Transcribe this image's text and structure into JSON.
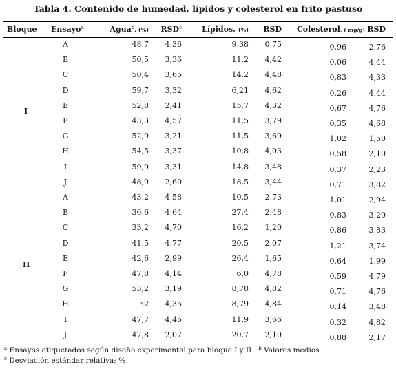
{
  "title": {
    "prefix": "Tabla 4.",
    "text": "Contenido de humedad, lípidos y colesterol en frito pastuso"
  },
  "headers": {
    "bloque": "Bloque",
    "ensayo": "Ensayo",
    "ensayo_sup": "a",
    "agua": "Agua",
    "agua_sup": "b",
    "agua_unit": ", (%)",
    "rsd1": "RSD",
    "rsd1_sup": "c",
    "lipidos": "Lípidos,",
    "lipidos_unit": "(%)",
    "rsd2": "RSD",
    "colesterol": "Colesterol",
    "colesterol_unit": ", ( mg/g)",
    "rsd3": "RSD"
  },
  "blocks": [
    {
      "label": "I"
    },
    {
      "label": "II"
    }
  ],
  "rows": [
    {
      "ensayo": "A",
      "agua": "48,7",
      "rsd1": "4,36",
      "lipidos": "9,38",
      "rsd2": "0,75",
      "colesterol": "0,96",
      "rsd3": "2,76"
    },
    {
      "ensayo": "B",
      "agua": "50,5",
      "rsd1": "3,36",
      "lipidos": "11,2",
      "rsd2": "4,42",
      "colesterol": "0,06",
      "rsd3": "4,44"
    },
    {
      "ensayo": "C",
      "agua": "50,4",
      "rsd1": "3,65",
      "lipidos": "14,2",
      "rsd2": "4,48",
      "colesterol": "0,83",
      "rsd3": "4,33"
    },
    {
      "ensayo": "D",
      "agua": "59,7",
      "rsd1": "3,32",
      "lipidos": "6,21",
      "rsd2": "4,62",
      "colesterol": "0,26",
      "rsd3": "4,44"
    },
    {
      "ensayo": "E",
      "agua": "52,8",
      "rsd1": "2,41",
      "lipidos": "15,7",
      "rsd2": "4,32",
      "colesterol": "0,67",
      "rsd3": "4,76"
    },
    {
      "ensayo": "F",
      "agua": "43,3",
      "rsd1": "4,57",
      "lipidos": "11,5",
      "rsd2": "3,79",
      "colesterol": "0,35",
      "rsd3": "4,68"
    },
    {
      "ensayo": "G",
      "agua": "52,9",
      "rsd1": "3,21",
      "lipidos": "11,5",
      "rsd2": "3,69",
      "colesterol": "1,02",
      "rsd3": "1,50"
    },
    {
      "ensayo": "H",
      "agua": "54,5",
      "rsd1": "3,37",
      "lipidos": "10,8",
      "rsd2": "4,03",
      "colesterol": "0,58",
      "rsd3": "2,10"
    },
    {
      "ensayo": "I",
      "agua": "59,9",
      "rsd1": "3,31",
      "lipidos": "14,8",
      "rsd2": "3,48",
      "colesterol": "0,37",
      "rsd3": "2,23"
    },
    {
      "ensayo": "J",
      "agua": "48,9",
      "rsd1": "2,60",
      "lipidos": "18,5",
      "rsd2": "3,44",
      "colesterol": "0,71",
      "rsd3": "3,82"
    },
    {
      "ensayo": "A",
      "agua": "43,2",
      "rsd1": "4,58",
      "lipidos": "10,5",
      "rsd2": "2,73",
      "colesterol": "1,01",
      "rsd3": "2,94"
    },
    {
      "ensayo": "B",
      "agua": "36,6",
      "rsd1": "4,64",
      "lipidos": "27,4",
      "rsd2": "2,48",
      "colesterol": "0,83",
      "rsd3": "3,20"
    },
    {
      "ensayo": "C",
      "agua": "33,2",
      "rsd1": "4,70",
      "lipidos": "16,2",
      "rsd2": "1,20",
      "colesterol": "0,86",
      "rsd3": "3,83"
    },
    {
      "ensayo": "D",
      "agua": "41,5",
      "rsd1": "4,77",
      "lipidos": "20,5",
      "rsd2": "2,07",
      "colesterol": "1,21",
      "rsd3": "3,74"
    },
    {
      "ensayo": "E",
      "agua": "42,6",
      "rsd1": "2,99",
      "lipidos": "26,4",
      "rsd2": "1,65",
      "colesterol": "0,64",
      "rsd3": "1,99"
    },
    {
      "ensayo": "F",
      "agua": "47,8",
      "rsd1": "4,14",
      "lipidos": "6,0",
      "rsd2": "4,78",
      "colesterol": "0,59",
      "rsd3": "4,79"
    },
    {
      "ensayo": "G",
      "agua": "53,2",
      "rsd1": "3,19",
      "lipidos": "8,78",
      "rsd2": "4,82",
      "colesterol": "0,71",
      "rsd3": "4,76"
    },
    {
      "ensayo": "H",
      "agua": "52",
      "rsd1": "4,35",
      "lipidos": "8,79",
      "rsd2": "4,84",
      "colesterol": "0,14",
      "rsd3": "3,48"
    },
    {
      "ensayo": "I",
      "agua": "47,7",
      "rsd1": "4,45",
      "lipidos": "11,9",
      "rsd2": "3,66",
      "colesterol": "0,32",
      "rsd3": "4,82"
    },
    {
      "ensayo": "J",
      "agua": "47,8",
      "rsd1": "2,07",
      "lipidos": "20,7",
      "rsd2": "2,10",
      "colesterol": "0,88",
      "rsd3": "2,17"
    }
  ],
  "footnotes": {
    "a_mark": "a",
    "a_text": " Ensayos etiquetados según diseño experimental para bloque I y II",
    "b_mark": "b",
    "b_text": " Valores medios",
    "c_mark": "c",
    "c_text": " Desviación estándar relativa; %"
  }
}
